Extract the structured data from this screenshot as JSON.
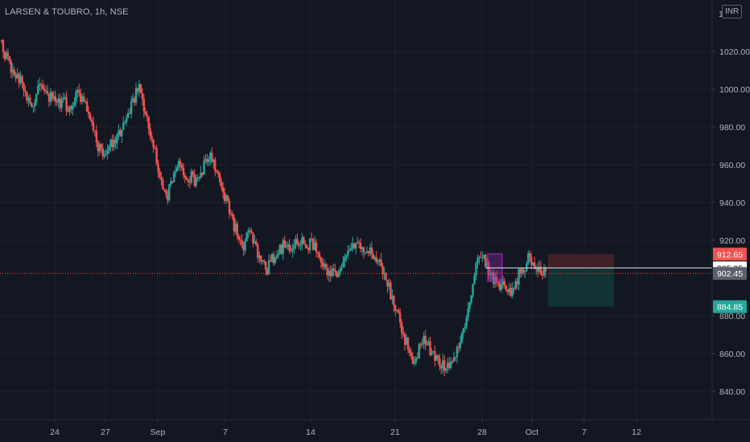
{
  "header": {
    "title": "LARSEN & TOUBRO, 1h, NSE",
    "currency_button": "INR",
    "top_axis_partial": "1 0"
  },
  "colors": {
    "background": "#131722",
    "grid": "#1e222d",
    "up": "#26a69a",
    "down": "#ef5350",
    "text": "#b2b5be",
    "current_price_line": "#ef5350",
    "stop_zone": "#4a2229",
    "target_zone": "#123635",
    "marker_box": "#9c27b0"
  },
  "chart_data": {
    "type": "candlestick",
    "symbol": "LARSEN & TOUBRO",
    "interval": "1h",
    "exchange": "NSE",
    "ylim": [
      833,
      1043
    ],
    "y_ticks": [
      "1020.00",
      "1000.00",
      "980.00",
      "960.00",
      "940.00",
      "920.00",
      "880.00",
      "860.00",
      "840.00"
    ],
    "x_ticks": [
      "24",
      "27",
      "Sep",
      "7",
      "14",
      "21",
      "28",
      "Oct",
      "7",
      "12"
    ],
    "price_labels": {
      "stop": "912.65",
      "entry": "905.35",
      "current": "902.45",
      "target": "884.85"
    },
    "position": {
      "stop": 912.65,
      "entry": 905.35,
      "target": 884.85
    },
    "close_series": [
      1023,
      1016,
      1010,
      1008,
      1004,
      1000,
      990,
      996,
      1006,
      1002,
      996,
      998,
      992,
      996,
      990,
      994,
      998,
      996,
      988,
      980,
      972,
      968,
      966,
      970,
      974,
      978,
      982,
      988,
      996,
      1002,
      990,
      980,
      970,
      958,
      948,
      944,
      952,
      960,
      956,
      950,
      954,
      950,
      956,
      962,
      966,
      960,
      950,
      944,
      936,
      928,
      920,
      916,
      924,
      920,
      912,
      906,
      904,
      910,
      912,
      916,
      918,
      914,
      918,
      920,
      916,
      918,
      916,
      912,
      906,
      904,
      902,
      904,
      908,
      912,
      916,
      920,
      916,
      912,
      914,
      910,
      906,
      900,
      892,
      884,
      876,
      868,
      860,
      856,
      862,
      866,
      864,
      858,
      856,
      854,
      852,
      856,
      860,
      868,
      880,
      892,
      910,
      912,
      908,
      902,
      898,
      896,
      898,
      892,
      896,
      902,
      904,
      910,
      908,
      905,
      903,
      902.45
    ]
  }
}
